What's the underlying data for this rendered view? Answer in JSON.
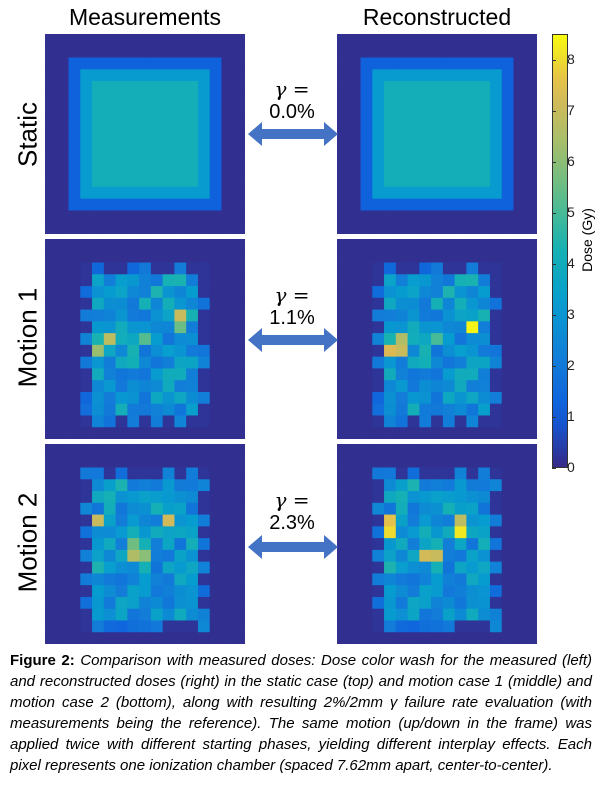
{
  "columns": {
    "left": "Measurements",
    "right": "Reconstructed"
  },
  "rows": [
    {
      "label": "Static",
      "gamma_symbol": "γ =",
      "gamma_value": "0.0%"
    },
    {
      "label": "Motion 1",
      "gamma_symbol": "γ =",
      "gamma_value": "1.1%"
    },
    {
      "label": "Motion 2",
      "gamma_symbol": "γ =",
      "gamma_value": "2.3%"
    }
  ],
  "colorbar": {
    "label": "Dose (Gy)",
    "ticks": [
      "0",
      "1",
      "2",
      "3",
      "4",
      "5",
      "6",
      "7",
      "8"
    ],
    "range": [
      0,
      8.5
    ]
  },
  "arrow_color": "#4472c4",
  "caption": {
    "label": "Figure 2:",
    "text": "Comparison with measured doses: Dose color wash for the measured (left) and reconstructed doses (right) in the static case (top) and motion case 1 (middle) and motion case 2 (bottom), along with resulting 2%/2mm γ failure rate evaluation (with measurements being the reference). The same motion (up/down in the frame) was applied twice with different starting phases, yielding different interplay effects. Each pixel represents one ionization chamber (spaced 7.62mm apart, center-to-center)."
  }
}
